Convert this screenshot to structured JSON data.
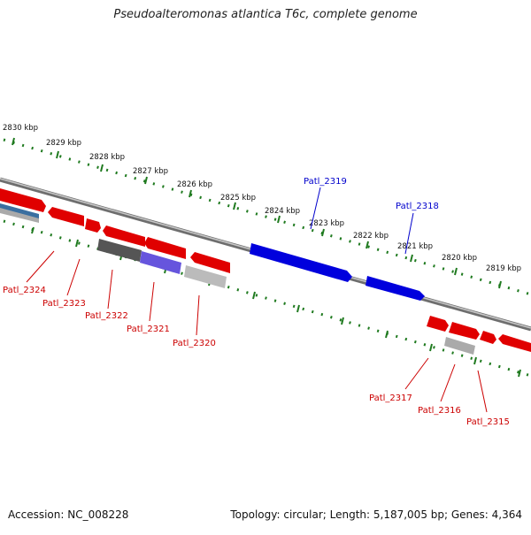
{
  "title": "Pseudoalteromonas atlantica T6c, complete genome",
  "footer": {
    "accession": "Accession: NC_008228",
    "summary": "Topology: circular; Length: 5,187,005 bp; Genes: 4,364"
  },
  "colors": {
    "forward_gene": "#ff0000",
    "reverse_gene": "#ff0000",
    "highlight_gene": "#0000ff",
    "tick_green": "#1f7a1f",
    "backbone": "#808080",
    "label_red": "#cc0000",
    "label_blue": "#0000cc"
  },
  "scale_labels": [
    "2830 kbp",
    "2829 kbp",
    "2828 kbp",
    "2827 kbp",
    "2826 kbp",
    "2825 kbp",
    "2824 kbp",
    "2823 kbp",
    "2822 kbp",
    "2821 kbp",
    "2820 kbp",
    "2819 kbp"
  ],
  "gene_labels": {
    "Patl_2324": "Patl_2324",
    "Patl_2323": "Patl_2323",
    "Patl_2322": "Patl_2322",
    "Patl_2321": "Patl_2321",
    "Patl_2320": "Patl_2320",
    "Patl_2319": "Patl_2319",
    "Patl_2318": "Patl_2318",
    "Patl_2317": "Patl_2317",
    "Patl_2316": "Patl_2316",
    "Patl_2315": "Patl_2315"
  }
}
